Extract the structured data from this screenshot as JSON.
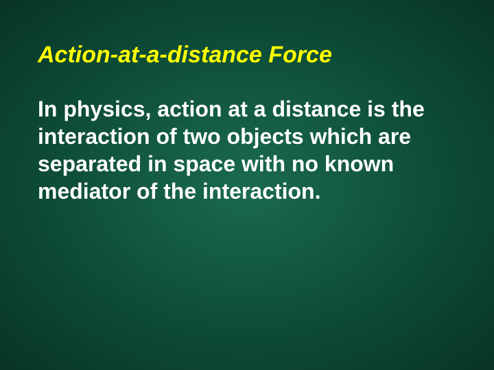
{
  "slide": {
    "title": "Action-at-a-distance Force",
    "body": "In physics, action at a distance is the interaction of two objects which are separated in space with no known mediator of the interaction.",
    "title_color": "#ffff00",
    "body_color": "#ffffff",
    "title_fontsize": 34,
    "body_fontsize": 32,
    "background_center": "#1a6b4f",
    "background_edge": "#083326"
  }
}
